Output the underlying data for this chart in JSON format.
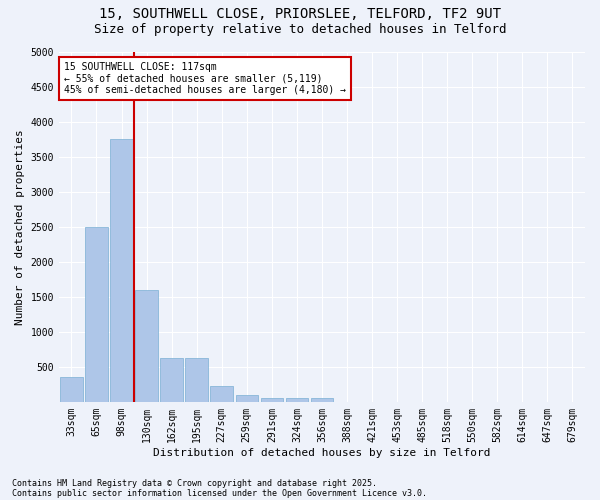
{
  "title_line1": "15, SOUTHWELL CLOSE, PRIORSLEE, TELFORD, TF2 9UT",
  "title_line2": "Size of property relative to detached houses in Telford",
  "xlabel": "Distribution of detached houses by size in Telford",
  "ylabel": "Number of detached properties",
  "categories": [
    "33sqm",
    "65sqm",
    "98sqm",
    "130sqm",
    "162sqm",
    "195sqm",
    "227sqm",
    "259sqm",
    "291sqm",
    "324sqm",
    "356sqm",
    "388sqm",
    "421sqm",
    "453sqm",
    "485sqm",
    "518sqm",
    "550sqm",
    "582sqm",
    "614sqm",
    "647sqm",
    "679sqm"
  ],
  "values": [
    350,
    2500,
    3750,
    1600,
    620,
    620,
    230,
    100,
    50,
    50,
    50,
    0,
    0,
    0,
    0,
    0,
    0,
    0,
    0,
    0,
    0
  ],
  "bar_color": "#aec6e8",
  "bar_edge_color": "#7aafd4",
  "vline_color": "#cc0000",
  "vline_pos": 2.5,
  "annotation_text": "15 SOUTHWELL CLOSE: 117sqm\n← 55% of detached houses are smaller (5,119)\n45% of semi-detached houses are larger (4,180) →",
  "annotation_box_color": "#ffffff",
  "annotation_box_edge": "#cc0000",
  "ylim": [
    0,
    5000
  ],
  "yticks": [
    0,
    500,
    1000,
    1500,
    2000,
    2500,
    3000,
    3500,
    4000,
    4500,
    5000
  ],
  "footnote1": "Contains HM Land Registry data © Crown copyright and database right 2025.",
  "footnote2": "Contains public sector information licensed under the Open Government Licence v3.0.",
  "bg_color": "#eef2fa",
  "plot_bg_color": "#eef2fa",
  "grid_color": "#ffffff",
  "title_fontsize": 10,
  "subtitle_fontsize": 9,
  "axis_label_fontsize": 8,
  "tick_fontsize": 7,
  "annotation_fontsize": 7,
  "footnote_fontsize": 6
}
